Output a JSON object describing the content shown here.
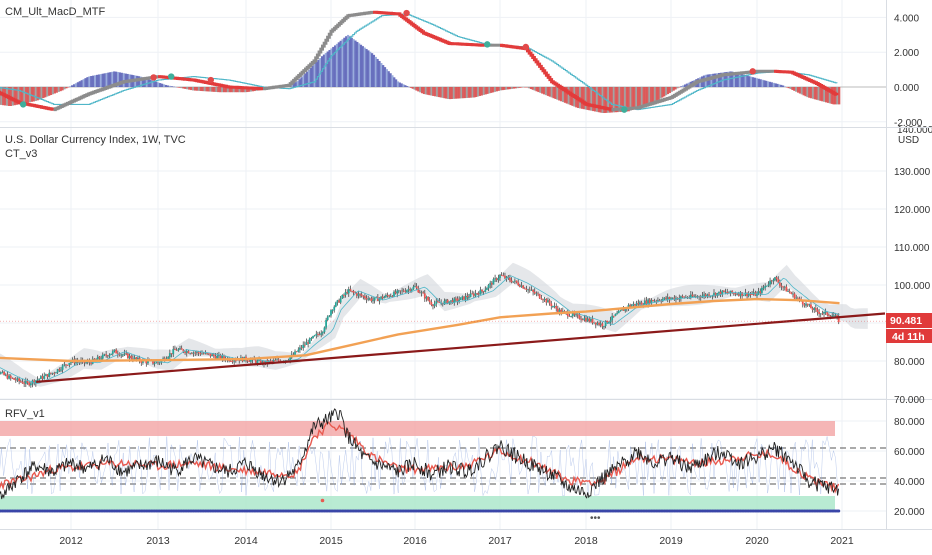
{
  "colors": {
    "background": "#ffffff",
    "grid": "#eef1f5",
    "separator": "#d9dde3",
    "axis_text": "#333333",
    "candle_up": "#26a69a",
    "candle_down": "#ef5350",
    "ma200": "#f2a154",
    "trendline": "#8b1a1a",
    "cloud": "#cfd3d8",
    "price_label_bg": "#e03a3a",
    "timer_label_bg": "#e03a3a",
    "macd_pos": "#5b63b8",
    "macd_neg": "#d94b4b",
    "macd_line_up": "#8c8c8c",
    "macd_line_down": "#e23b3b",
    "signal_line": "#4fb6c8",
    "cross_up": "#3fae9b",
    "cross_down": "#e24a4a",
    "rfv_main": "#222222",
    "rfv_red": "#e85a50",
    "rfv_blue": "#8fa9e0",
    "band_upper": "#f3a4a4",
    "band_lower": "#a8e6c8",
    "dot_row": "#3a46a8",
    "dashed": "#555555"
  },
  "panels": {
    "macd": {
      "title": "CM_Ult_MacD_MTF",
      "yticks": [
        4.0,
        2.0,
        0.0,
        -2.0
      ],
      "ytick_labels": [
        "4.000",
        "2.000",
        "0.000",
        "-2.000"
      ]
    },
    "price": {
      "title": "U.S. Dollar Currency Index, 1W, TVC",
      "subtitle": "CT_v3",
      "currency": "USD",
      "yticks": [
        130,
        120,
        110,
        100,
        90,
        80,
        70
      ],
      "ytick_labels": [
        "130.000",
        "120.000",
        "110.000",
        "100.000",
        "",
        "80.000",
        "70.000"
      ],
      "top_cut_label": "140.000",
      "last_price": "90.481",
      "timer": "4d 11h"
    },
    "rfv": {
      "title": "RFV_v1",
      "yticks": [
        80,
        60,
        40,
        20
      ],
      "ytick_labels": [
        "80.000",
        "60.000",
        "40.000",
        "20.000"
      ],
      "more_label": "•••"
    }
  },
  "x_axis": {
    "years": [
      "2012",
      "2013",
      "2014",
      "2015",
      "2016",
      "2017",
      "2018",
      "2019",
      "2020",
      "2021"
    ]
  },
  "chart_data": [
    {
      "type": "line",
      "title": "CM_Ult_MacD_MTF",
      "x_range": [
        2011.0,
        2021.5
      ],
      "ylim": [
        -2.3,
        4.8
      ],
      "series": [
        {
          "values_x": [
            2011.0,
            2011.4,
            2011.8,
            2012.2,
            2012.6,
            2013.0,
            2013.4,
            2013.8,
            2014.2,
            2014.5,
            2014.8,
            2015.0,
            2015.2,
            2015.5,
            2015.8,
            2016.1,
            2016.4,
            2016.8,
            2017.0,
            2017.3,
            2017.6,
            2018.0,
            2018.3,
            2018.6,
            2019.0,
            2019.3,
            2019.6,
            2020.0,
            2020.2,
            2020.4,
            2020.7,
            2020.95
          ],
          "values": [
            0.1,
            -0.9,
            -1.3,
            -0.4,
            0.3,
            0.6,
            0.4,
            0.0,
            -0.1,
            0.1,
            1.5,
            3.2,
            4.1,
            4.3,
            4.2,
            3.1,
            2.5,
            2.4,
            2.4,
            2.2,
            0.3,
            -1.0,
            -1.3,
            -1.2,
            -0.6,
            0.3,
            0.7,
            0.9,
            0.9,
            0.85,
            0.2,
            -0.5
          ]
        },
        {
          "values_x": [
            2011.0,
            2011.4,
            2011.8,
            2012.2,
            2012.6,
            2013.0,
            2013.4,
            2013.8,
            2014.2,
            2014.5,
            2014.8,
            2015.0,
            2015.3,
            2015.6,
            2015.9,
            2016.2,
            2016.5,
            2016.8,
            2017.0,
            2017.3,
            2017.6,
            2018.0,
            2018.3,
            2018.6,
            2019.0,
            2019.3,
            2019.6,
            2020.0,
            2020.3,
            2020.6,
            2020.95
          ],
          "values": [
            0.1,
            -0.2,
            -1.0,
            -1.0,
            -0.2,
            0.4,
            0.6,
            0.4,
            0.0,
            -0.1,
            0.3,
            1.8,
            3.2,
            4.1,
            4.2,
            3.6,
            2.9,
            2.5,
            2.4,
            2.3,
            1.5,
            0.1,
            -1.0,
            -1.3,
            -1.0,
            -0.2,
            0.4,
            0.8,
            0.9,
            0.7,
            0.2
          ]
        }
      ],
      "histogram_x": [
        2011.0,
        2011.3,
        2011.6,
        2011.9,
        2012.2,
        2012.5,
        2012.8,
        2013.1,
        2013.4,
        2013.7,
        2014.0,
        2014.3,
        2014.6,
        2014.9,
        2015.2,
        2015.5,
        2015.8,
        2016.1,
        2016.4,
        2016.7,
        2017.0,
        2017.3,
        2017.6,
        2017.9,
        2018.2,
        2018.5,
        2018.8,
        2019.1,
        2019.4,
        2019.7,
        2020.0,
        2020.3,
        2020.6,
        2020.9
      ],
      "histogram": [
        -0.9,
        -1.1,
        -0.8,
        -0.2,
        0.6,
        0.9,
        0.6,
        0.1,
        -0.2,
        -0.3,
        -0.3,
        -0.1,
        0.3,
        1.8,
        3.0,
        1.9,
        0.3,
        -0.4,
        -0.7,
        -0.6,
        -0.2,
        0.0,
        -0.6,
        -1.2,
        -1.5,
        -1.4,
        -0.9,
        0.0,
        0.7,
        0.9,
        0.5,
        0.1,
        -0.6,
        -1.0
      ]
    },
    {
      "type": "line",
      "title": "U.S. Dollar Currency Index, 1W, TVC",
      "x_range": [
        2011.0,
        2021.5
      ],
      "ylim": [
        70,
        140
      ],
      "series": [
        {
          "x": [
            2011.0,
            2011.3,
            2011.5,
            2011.8,
            2012.0,
            2012.2,
            2012.5,
            2012.8,
            2013.0,
            2013.2,
            2013.5,
            2013.8,
            2014.0,
            2014.2,
            2014.5,
            2014.7,
            2014.9,
            2015.0,
            2015.2,
            2015.5,
            2015.8,
            2016.0,
            2016.2,
            2016.5,
            2016.8,
            2017.0,
            2017.2,
            2017.5,
            2017.7,
            2018.0,
            2018.2,
            2018.5,
            2018.8,
            2019.0,
            2019.3,
            2019.6,
            2020.0,
            2020.2,
            2020.3,
            2020.5,
            2020.7,
            2020.9,
            2020.97
          ],
          "values": [
            79.0,
            75.5,
            74.0,
            77.0,
            80.0,
            79.5,
            82.5,
            80.0,
            79.5,
            83.0,
            82.0,
            80.5,
            80.5,
            79.5,
            80.5,
            84.5,
            88.0,
            93.5,
            98.5,
            96.0,
            98.0,
            99.5,
            95.0,
            96.0,
            98.5,
            102.5,
            100.5,
            96.5,
            93.0,
            91.0,
            89.5,
            94.5,
            96.0,
            96.5,
            97.0,
            98.0,
            97.5,
            102.0,
            99.5,
            96.0,
            93.0,
            92.0,
            90.481
          ]
        },
        {
          "x": [
            2011.0,
            2012.0,
            2013.0,
            2014.0,
            2014.7,
            2015.2,
            2015.8,
            2016.5,
            2017.0,
            2017.6,
            2018.0,
            2018.5,
            2019.0,
            2019.5,
            2020.0,
            2020.5,
            2020.97
          ],
          "values": [
            81.0,
            80.0,
            80.2,
            80.5,
            81.5,
            84.0,
            87.0,
            89.5,
            91.5,
            92.5,
            93.0,
            94.0,
            95.0,
            95.8,
            96.3,
            96.0,
            95.2
          ]
        },
        {
          "x": [
            2011.6,
            2021.5
          ],
          "values": [
            74.5,
            92.5
          ]
        }
      ]
    },
    {
      "type": "line",
      "title": "RFV_v1",
      "x_range": [
        2011.0,
        2021.5
      ],
      "ylim": [
        15,
        90
      ],
      "series": [
        {
          "x": [
            2011.0,
            2011.2,
            2011.4,
            2011.6,
            2011.8,
            2012.0,
            2012.2,
            2012.4,
            2012.6,
            2012.8,
            2013.0,
            2013.2,
            2013.4,
            2013.6,
            2013.8,
            2014.0,
            2014.2,
            2014.4,
            2014.6,
            2014.8,
            2015.0,
            2015.1,
            2015.2,
            2015.4,
            2015.6,
            2015.8,
            2016.0,
            2016.2,
            2016.4,
            2016.6,
            2016.8,
            2017.0,
            2017.2,
            2017.4,
            2017.6,
            2017.8,
            2018.0,
            2018.2,
            2018.4,
            2018.6,
            2018.8,
            2019.0,
            2019.2,
            2019.4,
            2019.6,
            2019.8,
            2020.0,
            2020.2,
            2020.4,
            2020.6,
            2020.8,
            2020.97
          ],
          "values": [
            38,
            30,
            42,
            50,
            46,
            52,
            48,
            55,
            46,
            50,
            53,
            47,
            55,
            50,
            46,
            52,
            44,
            40,
            48,
            76,
            82,
            86,
            70,
            55,
            50,
            46,
            52,
            44,
            50,
            46,
            54,
            64,
            56,
            50,
            44,
            36,
            32,
            42,
            50,
            60,
            52,
            56,
            48,
            54,
            60,
            52,
            56,
            62,
            54,
            40,
            36,
            34
          ]
        },
        {
          "x": [
            2011.0,
            2011.4,
            2011.8,
            2012.2,
            2012.6,
            2013.0,
            2013.4,
            2013.8,
            2014.2,
            2014.6,
            2014.8,
            2015.0,
            2015.2,
            2015.5,
            2015.8,
            2016.2,
            2016.6,
            2017.0,
            2017.4,
            2017.8,
            2018.2,
            2018.6,
            2019.0,
            2019.4,
            2019.8,
            2020.2,
            2020.6,
            2020.97
          ],
          "values": [
            36,
            40,
            48,
            50,
            52,
            50,
            52,
            48,
            46,
            45,
            70,
            78,
            72,
            56,
            48,
            48,
            50,
            60,
            52,
            40,
            40,
            56,
            54,
            52,
            56,
            58,
            42,
            35
          ]
        }
      ]
    }
  ]
}
